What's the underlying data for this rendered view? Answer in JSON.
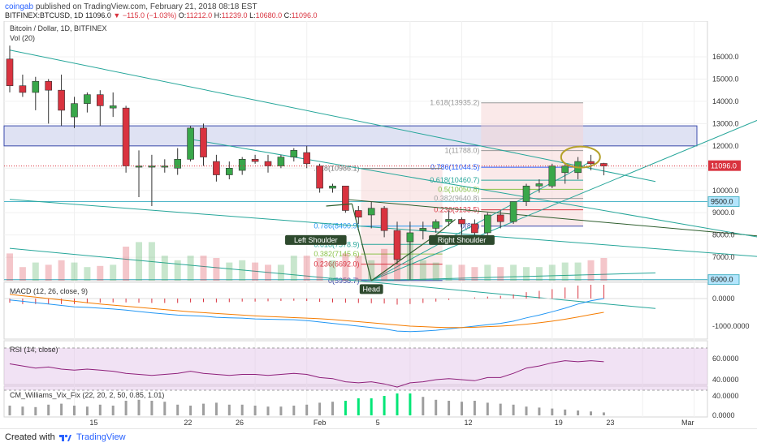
{
  "header": {
    "user": "coingab",
    "published": "published on TradingView.com, February 21, 2018 08:18 EST",
    "symbol": "BITFINEX:BTCUSD, 1D",
    "last": "11096.0",
    "change": "−115.0 (−1.03%)",
    "o_label": "O:",
    "o_value": "11212.0",
    "h_label": "H:",
    "h_value": "11239.0",
    "l_label": "L:",
    "l_value": "10680.0",
    "c_label": "C:",
    "c_value": "11096.0"
  },
  "colors": {
    "up": "#39a74a",
    "down": "#d9333f",
    "macd": "#2196f3",
    "signal": "#f57c00",
    "rsi": "#8e1f7a",
    "zone": "#c5cae9",
    "trend": "#26a69a",
    "fib_box": "#f5d3d3"
  },
  "legend": {
    "main": "Bitcoin / Dollar, 1D, BITFINEX",
    "vol": "Vol (20)",
    "macd": "MACD (12, 26, close, 9)",
    "rsi": "RSI (14, close)",
    "wvf": "CM_Williams_Vix_Fix (22, 20, 2, 50, 0.85, 1.01)"
  },
  "y_axis": {
    "main_ticks": [
      "16000.0",
      "15000.0",
      "14000.0",
      "13000.0",
      "12000.0",
      "11000.0",
      "10000.0",
      "9000.0",
      "8000.0",
      "7000.0",
      "6000.0"
    ],
    "price_badge": "11096.0",
    "level_badges": [
      "9500.0",
      "6000.0"
    ],
    "macd_ticks": [
      "0.0000",
      "-1000.0000"
    ],
    "rsi_ticks": [
      "60.0000",
      "40.0000"
    ],
    "wvf_ticks": [
      "40.0000",
      "0.0000"
    ]
  },
  "x_axis": {
    "ticks": [
      "15",
      "22",
      "26",
      "Feb",
      "5",
      "12",
      "19",
      "23",
      "Mar"
    ]
  },
  "fib_upper": [
    "1.618(13935.2)",
    "1(11788.0)",
    "0.786(11044.5)",
    "0.618(10460.7)",
    "0.5(10050.8)",
    "0.382(9640.8)",
    "0.236(9133.5)",
    "0(8...)"
  ],
  "fib_lower": [
    ".618(10986.1)",
    "0.786(8400.9)",
    "0.618(7578.9)",
    "0.382(7145.6)",
    "0.236(6692.0)",
    "0(5958.7)"
  ],
  "annotations": {
    "left_shoulder": "Left Shoulder",
    "right_shoulder": "Right Shoulder",
    "head": "Head"
  },
  "footer": {
    "created": "Created with",
    "brand": "TradingView"
  },
  "chart_data": {
    "type": "candlestick",
    "title": "Bitcoin / Dollar, 1D, BITFINEX",
    "ylim": [
      5200,
      16800
    ],
    "candles": [
      {
        "o": 15900,
        "h": 16500,
        "l": 14400,
        "c": 14700
      },
      {
        "o": 14700,
        "h": 15200,
        "l": 14200,
        "c": 14400
      },
      {
        "o": 14400,
        "h": 15100,
        "l": 13600,
        "c": 14900
      },
      {
        "o": 14900,
        "h": 15000,
        "l": 13000,
        "c": 14500
      },
      {
        "o": 14500,
        "h": 15200,
        "l": 12900,
        "c": 13600
      },
      {
        "o": 13300,
        "h": 14200,
        "l": 12800,
        "c": 13900
      },
      {
        "o": 13900,
        "h": 14400,
        "l": 13500,
        "c": 14300
      },
      {
        "o": 14300,
        "h": 14500,
        "l": 12900,
        "c": 13800
      },
      {
        "o": 13700,
        "h": 14400,
        "l": 13300,
        "c": 13800
      },
      {
        "o": 13700,
        "h": 13800,
        "l": 10800,
        "c": 11100
      },
      {
        "o": 11100,
        "h": 11800,
        "l": 9700,
        "c": 11100
      },
      {
        "o": 11100,
        "h": 11600,
        "l": 9300,
        "c": 11100
      },
      {
        "o": 11100,
        "h": 11400,
        "l": 10800,
        "c": 11100
      },
      {
        "o": 11000,
        "h": 11900,
        "l": 10700,
        "c": 11400
      },
      {
        "o": 11400,
        "h": 12900,
        "l": 11300,
        "c": 12800
      },
      {
        "o": 12800,
        "h": 13000,
        "l": 11100,
        "c": 11500
      },
      {
        "o": 11300,
        "h": 11600,
        "l": 10400,
        "c": 10700
      },
      {
        "o": 10700,
        "h": 11300,
        "l": 10500,
        "c": 11000
      },
      {
        "o": 10900,
        "h": 11500,
        "l": 10700,
        "c": 11400
      },
      {
        "o": 11400,
        "h": 11600,
        "l": 11200,
        "c": 11300
      },
      {
        "o": 11300,
        "h": 11600,
        "l": 10800,
        "c": 11100
      },
      {
        "o": 11100,
        "h": 11600,
        "l": 11000,
        "c": 11500
      },
      {
        "o": 11500,
        "h": 11900,
        "l": 11300,
        "c": 11800
      },
      {
        "o": 11700,
        "h": 12000,
        "l": 11000,
        "c": 11200
      },
      {
        "o": 11100,
        "h": 11200,
        "l": 9900,
        "c": 10100
      },
      {
        "o": 10100,
        "h": 10300,
        "l": 9900,
        "c": 10200
      },
      {
        "o": 10200,
        "h": 10200,
        "l": 9000,
        "c": 9100
      },
      {
        "o": 9100,
        "h": 9300,
        "l": 8500,
        "c": 8800
      },
      {
        "o": 8900,
        "h": 9500,
        "l": 8300,
        "c": 9200
      },
      {
        "o": 9200,
        "h": 9300,
        "l": 7900,
        "c": 8200
      },
      {
        "o": 8200,
        "h": 8600,
        "l": 6700,
        "c": 6900
      },
      {
        "o": 7700,
        "h": 8600,
        "l": 6000,
        "c": 8100
      },
      {
        "o": 8200,
        "h": 8600,
        "l": 7800,
        "c": 8300
      },
      {
        "o": 8300,
        "h": 8700,
        "l": 8100,
        "c": 8600
      },
      {
        "o": 8600,
        "h": 9100,
        "l": 8400,
        "c": 8700
      },
      {
        "o": 8700,
        "h": 8800,
        "l": 8000,
        "c": 8500
      },
      {
        "o": 8500,
        "h": 8700,
        "l": 7800,
        "c": 8100
      },
      {
        "o": 8100,
        "h": 9000,
        "l": 8000,
        "c": 8900
      },
      {
        "o": 8900,
        "h": 9100,
        "l": 8300,
        "c": 8600
      },
      {
        "o": 8600,
        "h": 9500,
        "l": 8500,
        "c": 9500
      },
      {
        "o": 9500,
        "h": 10300,
        "l": 9300,
        "c": 10200
      },
      {
        "o": 10200,
        "h": 10500,
        "l": 9900,
        "c": 10300
      },
      {
        "o": 10200,
        "h": 11200,
        "l": 10100,
        "c": 11100
      },
      {
        "o": 10800,
        "h": 11200,
        "l": 10300,
        "c": 11100
      },
      {
        "o": 10800,
        "h": 11500,
        "l": 10500,
        "c": 11300
      },
      {
        "o": 11300,
        "h": 11600,
        "l": 10900,
        "c": 11200
      },
      {
        "o": 11212,
        "h": 11239,
        "l": 10680,
        "c": 11096
      }
    ],
    "volume": [
      120,
      60,
      80,
      70,
      90,
      80,
      60,
      65,
      70,
      150,
      170,
      170,
      110,
      90,
      110,
      110,
      100,
      80,
      90,
      80,
      70,
      70,
      110,
      110,
      100,
      90,
      120,
      110,
      90,
      140,
      150,
      180,
      90,
      80,
      70,
      70,
      60,
      70,
      60,
      70,
      60,
      60,
      70,
      80,
      80,
      90,
      100
    ],
    "macd": [
      -50,
      -100,
      -150,
      -200,
      -250,
      -300,
      -320,
      -350,
      -380,
      -420,
      -470,
      -520,
      -560,
      -600,
      -620,
      -640,
      -680,
      -700,
      -710,
      -740,
      -750,
      -760,
      -770,
      -800,
      -850,
      -900,
      -950,
      -1000,
      -1050,
      -1100,
      -1180,
      -1200,
      -1180,
      -1150,
      -1100,
      -1050,
      -1000,
      -950,
      -900,
      -820,
      -700,
      -600,
      -480,
      -350,
      -200,
      -80,
      0
    ],
    "signal": [
      150,
      100,
      50,
      0,
      -50,
      -100,
      -150,
      -200,
      -240,
      -280,
      -320,
      -360,
      -400,
      -440,
      -480,
      -510,
      -540,
      -570,
      -600,
      -630,
      -650,
      -670,
      -690,
      -710,
      -730,
      -760,
      -800,
      -840,
      -880,
      -920,
      -960,
      -1000,
      -1020,
      -1040,
      -1050,
      -1050,
      -1040,
      -1020,
      -1000,
      -970,
      -930,
      -880,
      -820,
      -750,
      -670,
      -580,
      -500
    ],
    "macd_hist": [
      -150,
      -200,
      -200,
      -200,
      -200,
      -200,
      -170,
      -150,
      -140,
      -140,
      -150,
      -160,
      -160,
      -160,
      -140,
      -130,
      -140,
      -130,
      -110,
      -110,
      -100,
      -90,
      -80,
      -90,
      -120,
      -140,
      -150,
      -160,
      -170,
      -180,
      -220,
      -200,
      -160,
      -110,
      -50,
      0,
      40,
      70,
      100,
      150,
      230,
      280,
      340,
      400,
      470,
      500,
      500
    ],
    "rsi": [
      55,
      53,
      51,
      52,
      50,
      49,
      50,
      49,
      48,
      46,
      45,
      44,
      45,
      46,
      48,
      46,
      45,
      44,
      45,
      45,
      44,
      45,
      46,
      45,
      42,
      41,
      38,
      37,
      38,
      36,
      33,
      37,
      38,
      40,
      41,
      40,
      39,
      42,
      42,
      46,
      51,
      53,
      56,
      58,
      57,
      58,
      57
    ],
    "wvf": [
      20,
      18,
      17,
      22,
      24,
      20,
      18,
      22,
      20,
      30,
      32,
      30,
      28,
      22,
      20,
      24,
      26,
      22,
      22,
      20,
      18,
      18,
      20,
      22,
      26,
      28,
      30,
      35,
      35,
      40,
      45,
      45,
      38,
      32,
      30,
      28,
      30,
      26,
      24,
      22,
      18,
      16,
      14,
      12,
      10,
      8,
      6
    ],
    "wvf_green": [
      0,
      0,
      0,
      0,
      0,
      0,
      0,
      0,
      0,
      0,
      0,
      0,
      0,
      0,
      0,
      0,
      0,
      0,
      0,
      0,
      0,
      0,
      0,
      0,
      0,
      0,
      1,
      1,
      1,
      1,
      1,
      1,
      0,
      0,
      0,
      0,
      0,
      0,
      0,
      0,
      0,
      0,
      0,
      0,
      0,
      0,
      0
    ],
    "levels": [
      9500,
      6000
    ],
    "resistance_zone": [
      12000,
      12900
    ]
  }
}
